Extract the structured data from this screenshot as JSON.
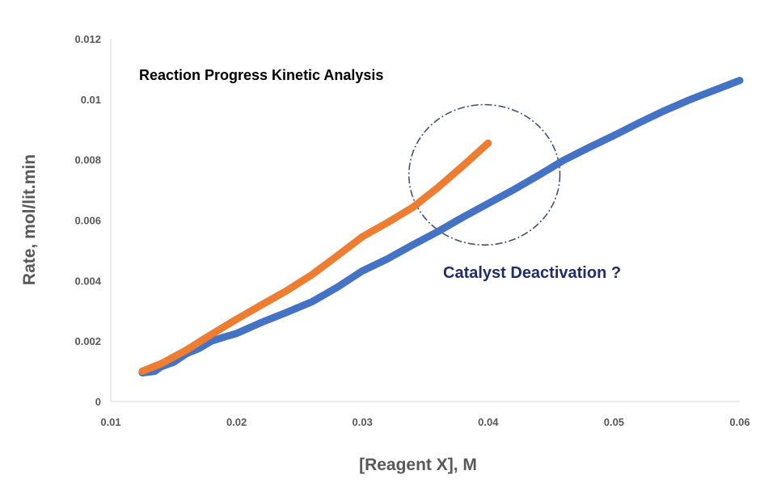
{
  "chart_data": {
    "type": "line",
    "title": "Reaction Progress Kinetic Analysis",
    "xlabel": "[Reagent X], M",
    "ylabel": "Rate, mol/lit.min",
    "xlim": [
      0.01,
      0.06
    ],
    "ylim": [
      0,
      0.012
    ],
    "x_ticks": [
      "0.01",
      "0.02",
      "0.03",
      "0.04",
      "0.05",
      "0.06"
    ],
    "y_ticks": [
      "0",
      "0.002",
      "0.004",
      "0.006",
      "0.008",
      "0.01",
      "0.012"
    ],
    "grid": false,
    "legend": "none",
    "series": [
      {
        "color": "#4472c4",
        "points": [
          [
            0.0125,
            0.00095
          ],
          [
            0.0135,
            0.001
          ],
          [
            0.014,
            0.00115
          ],
          [
            0.015,
            0.0013
          ],
          [
            0.016,
            0.00158
          ],
          [
            0.017,
            0.00175
          ],
          [
            0.018,
            0.002
          ],
          [
            0.019,
            0.00213
          ],
          [
            0.02,
            0.00225
          ],
          [
            0.022,
            0.00262
          ],
          [
            0.024,
            0.00295
          ],
          [
            0.026,
            0.0033
          ],
          [
            0.028,
            0.00378
          ],
          [
            0.03,
            0.00432
          ],
          [
            0.032,
            0.00472
          ],
          [
            0.034,
            0.00518
          ],
          [
            0.036,
            0.00562
          ],
          [
            0.038,
            0.0061
          ],
          [
            0.04,
            0.00655
          ],
          [
            0.042,
            0.007
          ],
          [
            0.044,
            0.00748
          ],
          [
            0.046,
            0.00798
          ],
          [
            0.048,
            0.0084
          ],
          [
            0.05,
            0.0088
          ],
          [
            0.052,
            0.00922
          ],
          [
            0.054,
            0.00962
          ],
          [
            0.056,
            0.00998
          ],
          [
            0.058,
            0.0103
          ],
          [
            0.06,
            0.01062
          ]
        ]
      },
      {
        "color": "#ed7d31",
        "points": [
          [
            0.0125,
            0.001
          ],
          [
            0.014,
            0.00125
          ],
          [
            0.016,
            0.0017
          ],
          [
            0.018,
            0.00222
          ],
          [
            0.02,
            0.00272
          ],
          [
            0.022,
            0.0032
          ],
          [
            0.024,
            0.00367
          ],
          [
            0.026,
            0.0042
          ],
          [
            0.028,
            0.00482
          ],
          [
            0.03,
            0.00545
          ],
          [
            0.032,
            0.00592
          ],
          [
            0.034,
            0.00642
          ],
          [
            0.036,
            0.00708
          ],
          [
            0.038,
            0.0078
          ],
          [
            0.04,
            0.00855
          ]
        ]
      }
    ],
    "annotations": [
      {
        "text": "Catalyst Deactivation ?",
        "color": "#1f2d6b"
      }
    ],
    "highlight_circle": {
      "cx": 0.0397,
      "cy": 0.0075,
      "r_x": 0.006,
      "style": "dash-dot",
      "color": "#44546a"
    }
  }
}
